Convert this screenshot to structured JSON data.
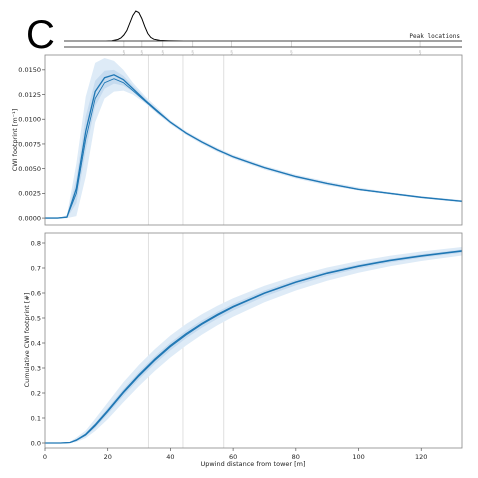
{
  "panel_letter": "C",
  "colors": {
    "line": "#1f77b4",
    "band_outer": "#deebf7",
    "band_inner": "#c6dbef",
    "vline": "#e0e0e0",
    "axis": "#888888"
  },
  "chart_data": [
    {
      "type": "line",
      "role": "peak-distribution",
      "annotation": "Peak locations",
      "x": [
        0,
        14,
        16,
        18,
        19,
        20,
        21,
        22,
        23,
        24,
        25,
        26,
        27,
        28,
        29,
        30,
        32,
        35,
        40,
        133
      ],
      "values": [
        0,
        0,
        0.01,
        0.05,
        0.1,
        0.2,
        0.35,
        0.6,
        0.85,
        1.0,
        0.95,
        0.75,
        0.48,
        0.25,
        0.12,
        0.06,
        0.02,
        0.01,
        0,
        0
      ],
      "peak_markers_x": [
        20,
        26,
        33,
        43,
        56,
        76,
        119
      ],
      "xlim": [
        0,
        133
      ]
    },
    {
      "type": "line",
      "role": "footprint",
      "xlabel": "",
      "ylabel": "CWI footprint [m⁻¹]",
      "ylim": [
        -0.0007,
        0.0165
      ],
      "xlim": [
        0,
        133
      ],
      "yticks": [
        0.0,
        0.0025,
        0.005,
        0.0075,
        0.01,
        0.0125,
        0.015
      ],
      "ytick_labels": [
        "0.0000",
        "0.0025",
        "0.0050",
        "0.0075",
        "0.0100",
        "0.0125",
        "0.0150"
      ],
      "vlines_x": [
        33,
        44,
        57
      ],
      "x": [
        0,
        4,
        7,
        10,
        13,
        16,
        19,
        22,
        25,
        28,
        32,
        36,
        40,
        45,
        50,
        55,
        60,
        70,
        80,
        90,
        100,
        110,
        120,
        133
      ],
      "series": [
        {
          "values": [
            0,
            0,
            0.0001,
            0.0025,
            0.008,
            0.0121,
            0.0137,
            0.0141,
            0.0137,
            0.0129,
            0.0118,
            0.0107,
            0.0097,
            0.0086,
            0.0077,
            0.0069,
            0.0062,
            0.0051,
            0.0042,
            0.0035,
            0.0029,
            0.0025,
            0.0021,
            0.0017
          ]
        },
        {
          "values": [
            0,
            0,
            0.0001,
            0.003,
            0.0088,
            0.0128,
            0.0142,
            0.0145,
            0.014,
            0.0131,
            0.0119,
            0.0108,
            0.0097,
            0.0086,
            0.0077,
            0.0069,
            0.0062,
            0.0051,
            0.0042,
            0.0035,
            0.0029,
            0.0025,
            0.0021,
            0.0017
          ]
        }
      ],
      "band_outer_lower": [
        0,
        0,
        0,
        0.0002,
        0.0042,
        0.0097,
        0.0121,
        0.0128,
        0.0129,
        0.0125,
        0.0116,
        0.0105,
        0.0095,
        0.0084,
        0.0075,
        0.0067,
        0.006,
        0.0049,
        0.004,
        0.0033,
        0.0028,
        0.0024,
        0.002,
        0.0016
      ],
      "band_outer_upper": [
        0,
        0,
        0.0003,
        0.0055,
        0.0123,
        0.0157,
        0.0162,
        0.0159,
        0.015,
        0.0137,
        0.0123,
        0.0111,
        0.0099,
        0.0088,
        0.0079,
        0.0071,
        0.0064,
        0.0053,
        0.0044,
        0.0037,
        0.0031,
        0.0026,
        0.0022,
        0.0018
      ],
      "band_inner_lower": [
        0,
        0,
        0,
        0.0015,
        0.0068,
        0.0113,
        0.0131,
        0.0136,
        0.0134,
        0.0128,
        0.0117,
        0.0106,
        0.0096,
        0.0085,
        0.0076,
        0.0068,
        0.0061,
        0.005,
        0.0041,
        0.0034,
        0.0028,
        0.0024,
        0.002,
        0.0016
      ],
      "band_inner_upper": [
        0,
        0,
        0.0002,
        0.004,
        0.0103,
        0.0139,
        0.0149,
        0.015,
        0.0144,
        0.0134,
        0.0121,
        0.0109,
        0.0098,
        0.0087,
        0.0078,
        0.007,
        0.0063,
        0.0052,
        0.0043,
        0.0036,
        0.003,
        0.0026,
        0.0022,
        0.0018
      ]
    },
    {
      "type": "line",
      "role": "cumulative",
      "xlabel": "Upwind distance from tower [m]",
      "ylabel": "Cumulative CWI footprint [#]",
      "ylim": [
        -0.02,
        0.84
      ],
      "xlim": [
        0,
        133
      ],
      "yticks": [
        0.0,
        0.1,
        0.2,
        0.3,
        0.4,
        0.5,
        0.6,
        0.7,
        0.8
      ],
      "ytick_labels": [
        "0.0",
        "0.1",
        "0.2",
        "0.3",
        "0.4",
        "0.5",
        "0.6",
        "0.7",
        "0.8"
      ],
      "xticks": [
        0,
        20,
        40,
        60,
        80,
        100,
        120
      ],
      "xtick_labels": [
        "0",
        "20",
        "40",
        "60",
        "80",
        "100",
        "120"
      ],
      "vlines_x": [
        33,
        44,
        57
      ],
      "x": [
        0,
        5,
        8,
        10,
        13,
        16,
        20,
        25,
        30,
        35,
        40,
        45,
        50,
        55,
        60,
        70,
        80,
        90,
        100,
        110,
        120,
        133
      ],
      "series": [
        {
          "values": [
            0,
            0,
            0.002,
            0.01,
            0.032,
            0.068,
            0.125,
            0.2,
            0.268,
            0.33,
            0.385,
            0.432,
            0.474,
            0.51,
            0.543,
            0.598,
            0.642,
            0.678,
            0.706,
            0.729,
            0.747,
            0.767
          ]
        },
        {
          "values": [
            0,
            0,
            0.002,
            0.012,
            0.035,
            0.073,
            0.13,
            0.205,
            0.273,
            0.335,
            0.39,
            0.437,
            0.478,
            0.514,
            0.546,
            0.6,
            0.644,
            0.68,
            0.708,
            0.731,
            0.749,
            0.769
          ]
        }
      ],
      "band_outer_lower": [
        0,
        0,
        0,
        0.004,
        0.02,
        0.048,
        0.095,
        0.163,
        0.228,
        0.288,
        0.342,
        0.39,
        0.433,
        0.471,
        0.505,
        0.563,
        0.61,
        0.649,
        0.681,
        0.707,
        0.728,
        0.75
      ],
      "band_outer_upper": [
        0,
        0,
        0.005,
        0.022,
        0.05,
        0.097,
        0.162,
        0.243,
        0.313,
        0.375,
        0.43,
        0.476,
        0.515,
        0.549,
        0.579,
        0.629,
        0.669,
        0.702,
        0.728,
        0.749,
        0.766,
        0.784
      ],
      "band_inner_lower": [
        0,
        0,
        0.001,
        0.008,
        0.028,
        0.06,
        0.115,
        0.188,
        0.255,
        0.316,
        0.371,
        0.419,
        0.461,
        0.497,
        0.53,
        0.586,
        0.631,
        0.668,
        0.698,
        0.722,
        0.741,
        0.761
      ],
      "band_inner_upper": [
        0,
        0,
        0.003,
        0.015,
        0.04,
        0.08,
        0.14,
        0.216,
        0.285,
        0.347,
        0.402,
        0.449,
        0.49,
        0.525,
        0.557,
        0.61,
        0.653,
        0.688,
        0.715,
        0.737,
        0.755,
        0.774
      ]
    }
  ]
}
